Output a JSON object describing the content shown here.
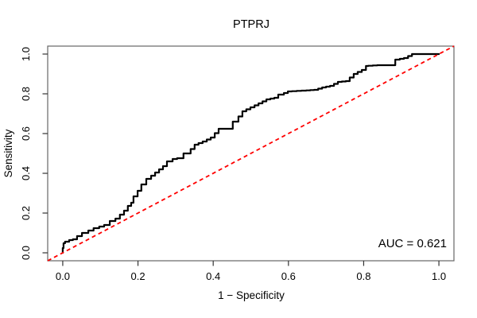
{
  "figure": {
    "background": "#ffffff",
    "frame_color": "#666666",
    "tick_color": "#333333",
    "text_color": "#000000"
  },
  "chart_data": {
    "type": "line",
    "subtype": "roc-curve",
    "title": "PTPRJ",
    "xlabel": "1 − Specificity",
    "ylabel": "Sensitivity",
    "annotation": "AUC = 0.621",
    "auc": 0.621,
    "grid": false,
    "legend": "none",
    "xlim": [
      -0.04,
      1.04
    ],
    "ylim": [
      -0.04,
      1.04
    ],
    "x_ticks": [
      "0.0",
      "0.2",
      "0.4",
      "0.6",
      "0.8",
      "1.0"
    ],
    "y_ticks": [
      "0.0",
      "0.2",
      "0.4",
      "0.6",
      "0.8",
      "1.0"
    ],
    "series": [
      {
        "name": "ROC curve",
        "color": "#000000",
        "line_type": "step",
        "line_width": 2.2,
        "points": [
          [
            0.0,
            0.0
          ],
          [
            0.002,
            0.024
          ],
          [
            0.006,
            0.048
          ],
          [
            0.017,
            0.056
          ],
          [
            0.027,
            0.064
          ],
          [
            0.038,
            0.068
          ],
          [
            0.051,
            0.084
          ],
          [
            0.068,
            0.1
          ],
          [
            0.082,
            0.112
          ],
          [
            0.097,
            0.124
          ],
          [
            0.11,
            0.132
          ],
          [
            0.125,
            0.14
          ],
          [
            0.14,
            0.16
          ],
          [
            0.152,
            0.172
          ],
          [
            0.163,
            0.192
          ],
          [
            0.173,
            0.212
          ],
          [
            0.182,
            0.236
          ],
          [
            0.188,
            0.252
          ],
          [
            0.199,
            0.284
          ],
          [
            0.209,
            0.312
          ],
          [
            0.222,
            0.344
          ],
          [
            0.235,
            0.372
          ],
          [
            0.256,
            0.404
          ],
          [
            0.277,
            0.436
          ],
          [
            0.292,
            0.46
          ],
          [
            0.304,
            0.472
          ],
          [
            0.321,
            0.476
          ],
          [
            0.34,
            0.5
          ],
          [
            0.361,
            0.544
          ],
          [
            0.383,
            0.56
          ],
          [
            0.404,
            0.58
          ],
          [
            0.425,
            0.624
          ],
          [
            0.452,
            0.624
          ],
          [
            0.467,
            0.66
          ],
          [
            0.488,
            0.712
          ],
          [
            0.51,
            0.732
          ],
          [
            0.531,
            0.752
          ],
          [
            0.552,
            0.772
          ],
          [
            0.573,
            0.78
          ],
          [
            0.588,
            0.796
          ],
          [
            0.609,
            0.812
          ],
          [
            0.647,
            0.816
          ],
          [
            0.679,
            0.82
          ],
          [
            0.7,
            0.832
          ],
          [
            0.721,
            0.84
          ],
          [
            0.742,
            0.86
          ],
          [
            0.763,
            0.864
          ],
          [
            0.784,
            0.9
          ],
          [
            0.806,
            0.92
          ],
          [
            0.812,
            0.94
          ],
          [
            0.848,
            0.944
          ],
          [
            0.884,
            0.944
          ],
          [
            0.896,
            0.972
          ],
          [
            0.918,
            0.98
          ],
          [
            0.939,
            1.0
          ],
          [
            1.0,
            1.0
          ]
        ]
      },
      {
        "name": "reference diagonal",
        "color": "#ff0000",
        "line_type": "dashed",
        "line_width": 1.8,
        "points": [
          [
            -0.04,
            -0.04
          ],
          [
            1.04,
            1.04
          ]
        ]
      }
    ]
  }
}
